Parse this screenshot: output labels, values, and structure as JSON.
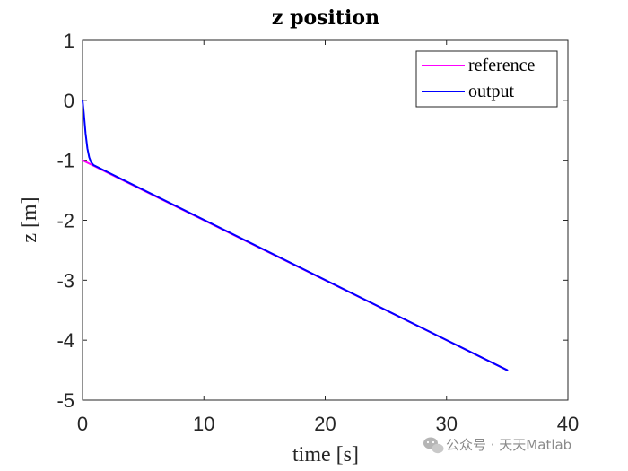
{
  "chart_data": {
    "type": "line",
    "title": "z position",
    "xlabel": "time [s]",
    "ylabel": "z [m]",
    "xlim": [
      0,
      40
    ],
    "ylim": [
      -5,
      1
    ],
    "xticks": [
      0,
      10,
      20,
      30,
      40
    ],
    "yticks": [
      1,
      0,
      -1,
      -2,
      -3,
      -4,
      -5
    ],
    "grid": false,
    "legend_position": "top-right",
    "series": [
      {
        "name": "reference",
        "color": "#ff00ff",
        "x": [
          0,
          1,
          35
        ],
        "y": [
          -1,
          -1.1,
          -4.5
        ]
      },
      {
        "name": "output",
        "color": "#0000ff",
        "x": [
          0,
          0.1,
          0.25,
          0.4,
          0.55,
          0.7,
          0.9,
          1.2,
          35
        ],
        "y": [
          0,
          -0.2,
          -0.55,
          -0.8,
          -0.95,
          -1.03,
          -1.08,
          -1.11,
          -4.5
        ]
      }
    ]
  },
  "watermark": {
    "icon": "wechat-icon",
    "text": "公众号 · 天天Matlab"
  }
}
